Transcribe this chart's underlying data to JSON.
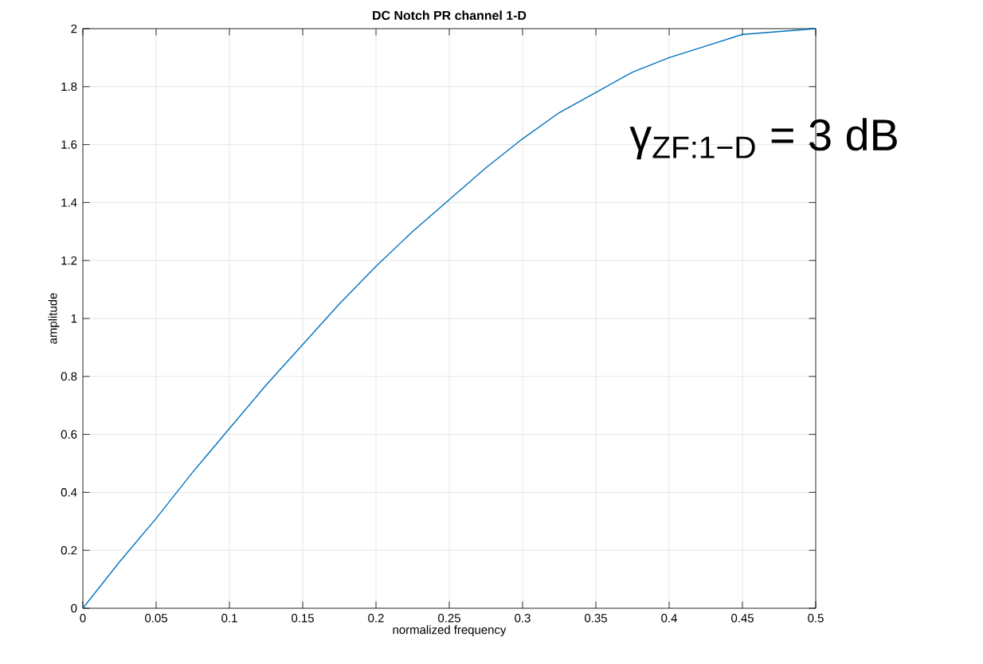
{
  "chart_data": {
    "type": "line",
    "title": "DC Notch PR channel 1-D",
    "xlabel": "normalized frequency",
    "ylabel": "amplitude",
    "x": [
      0,
      0.025,
      0.05,
      0.075,
      0.1,
      0.125,
      0.15,
      0.175,
      0.2,
      0.225,
      0.25,
      0.275,
      0.3,
      0.325,
      0.35,
      0.375,
      0.4,
      0.425,
      0.45,
      0.475,
      0.5
    ],
    "series": [
      {
        "color": "#0072bd",
        "values": [
          0,
          0.16,
          0.31,
          0.47,
          0.62,
          0.77,
          0.91,
          1.05,
          1.18,
          1.3,
          1.41,
          1.52,
          1.62,
          1.71,
          1.78,
          1.85,
          1.9,
          1.94,
          1.98,
          1.99,
          2
        ]
      }
    ],
    "xlim": [
      0,
      0.5
    ],
    "ylim": [
      0,
      2
    ],
    "xticks": [
      0,
      0.05,
      0.1,
      0.15,
      0.2,
      0.25,
      0.3,
      0.35,
      0.4,
      0.45,
      0.5
    ],
    "yticks": [
      0,
      0.2,
      0.4,
      0.6,
      0.8,
      1,
      1.2,
      1.4,
      1.6,
      1.8,
      2
    ],
    "grid": true,
    "marker": "none",
    "line_style": "solid",
    "annotations": [
      "γ$_{ZF:1−D}$ = 3 dB"
    ]
  }
}
